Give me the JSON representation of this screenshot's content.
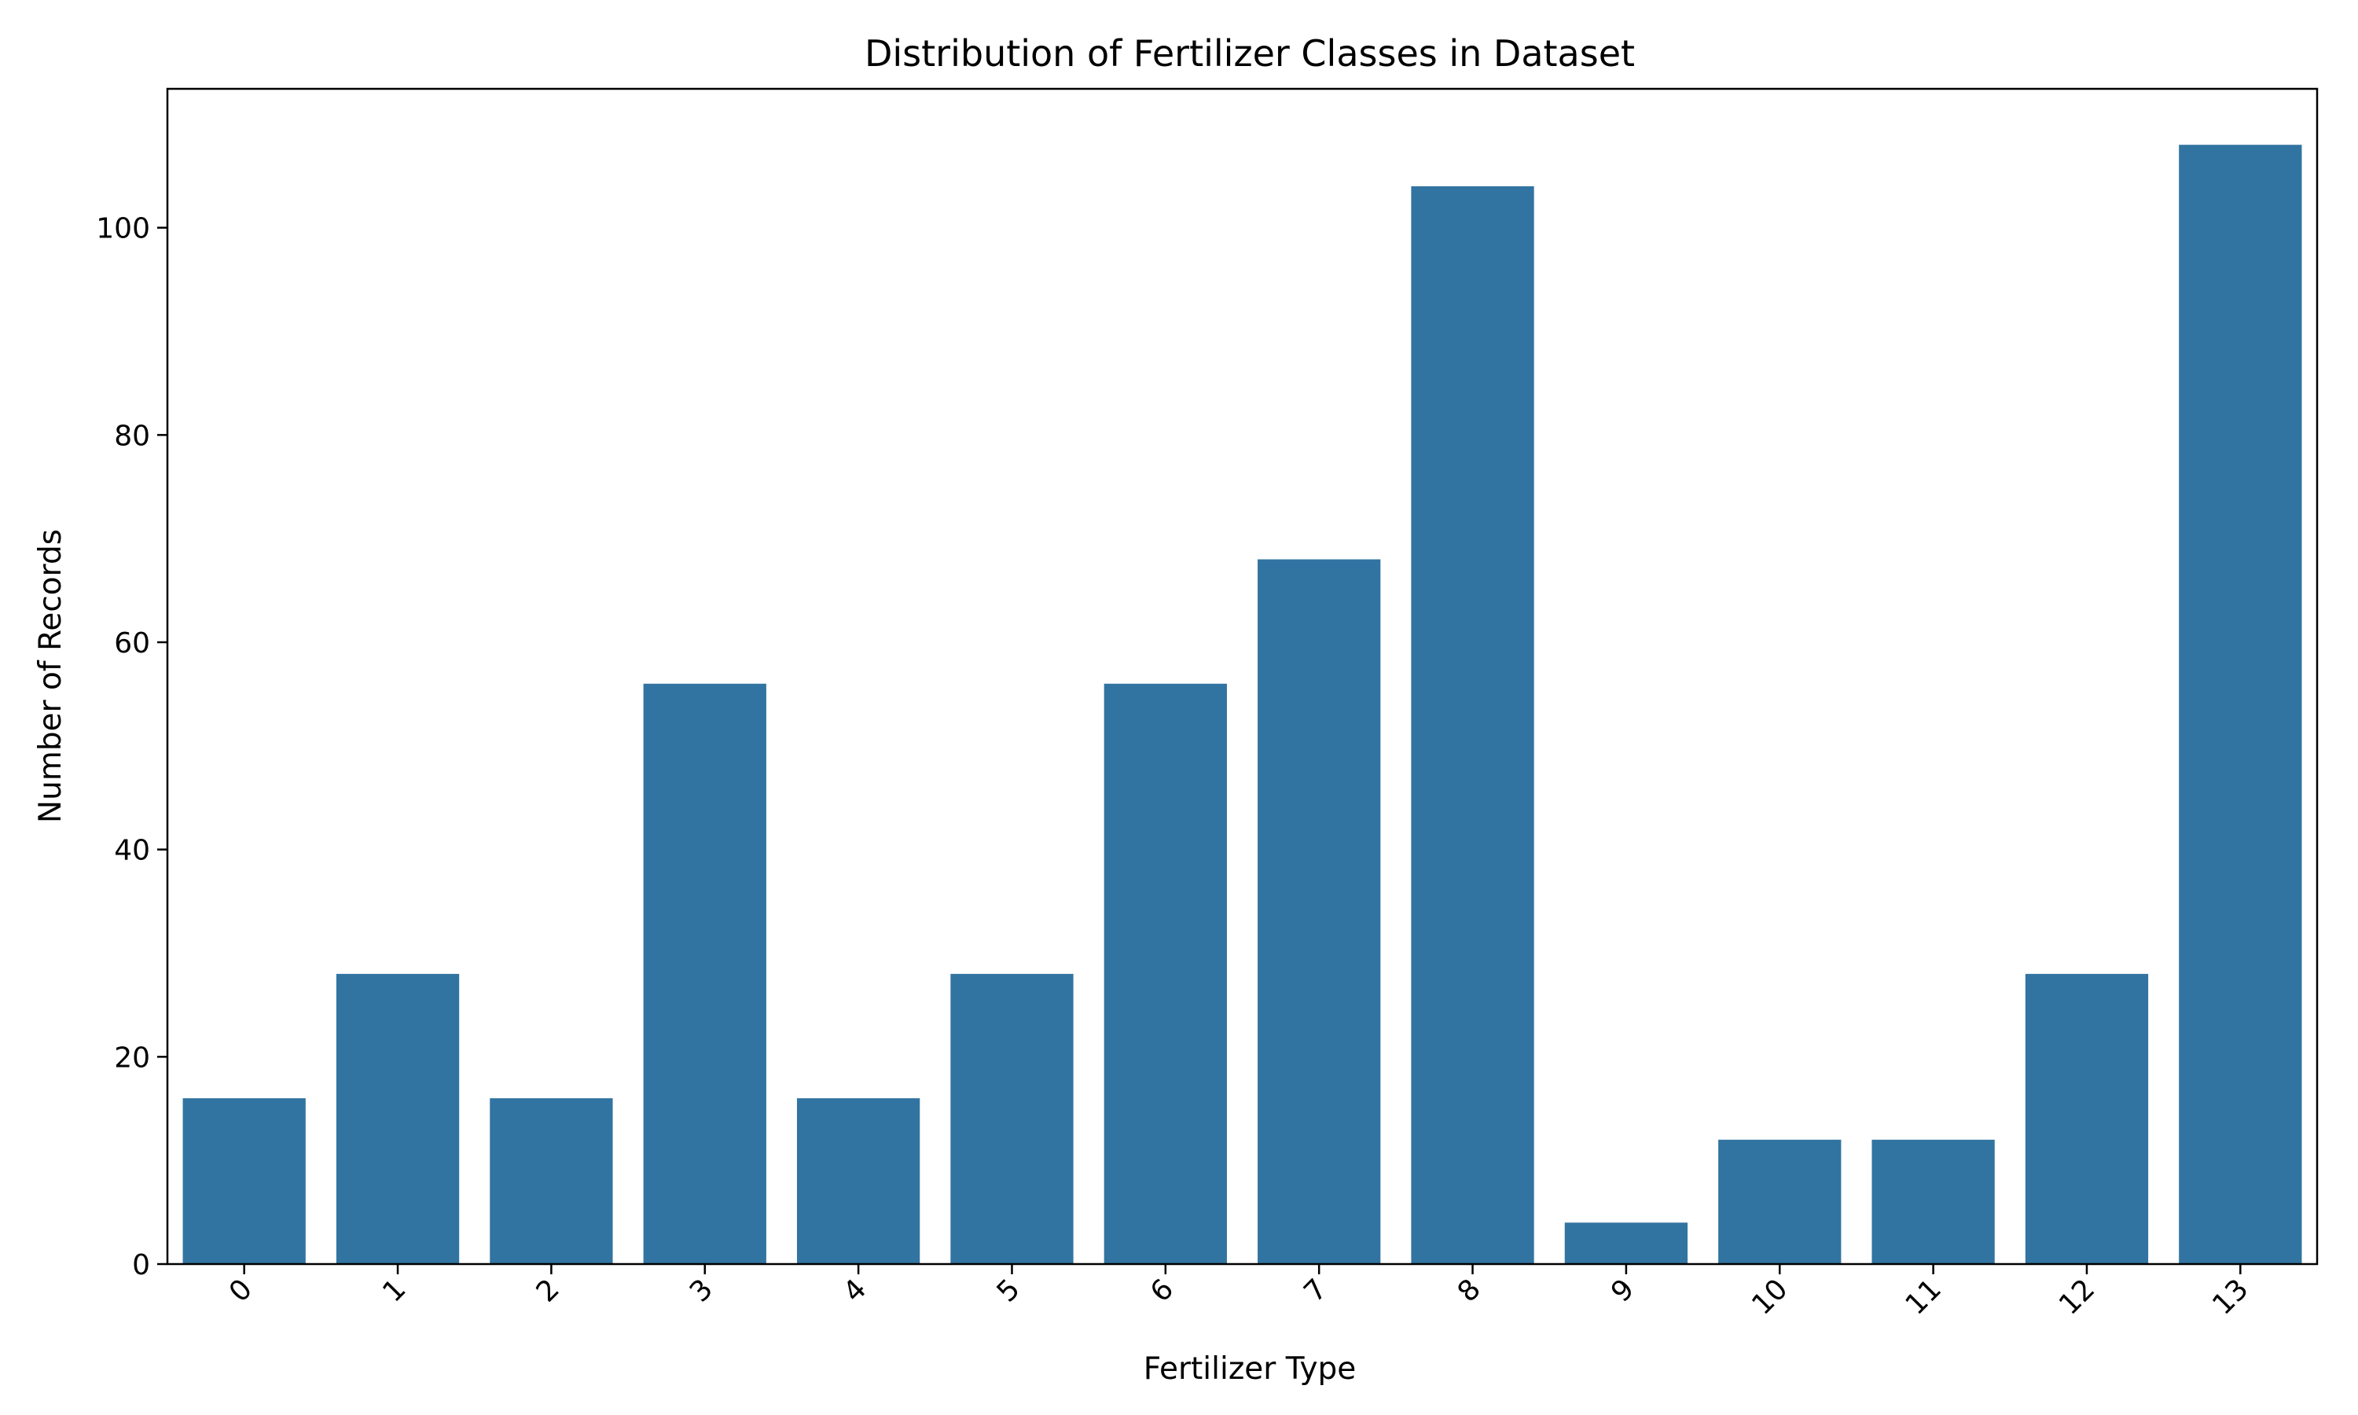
{
  "chart_data": {
    "type": "bar",
    "title": "Distribution of Fertilizer Classes in Dataset",
    "xlabel": "Fertilizer Type",
    "ylabel": "Number of Records",
    "categories": [
      "0",
      "1",
      "2",
      "3",
      "4",
      "5",
      "6",
      "7",
      "8",
      "9",
      "10",
      "11",
      "12",
      "13"
    ],
    "values": [
      16,
      28,
      16,
      56,
      16,
      28,
      56,
      68,
      104,
      4,
      12,
      12,
      28,
      108
    ],
    "ylim": [
      0,
      113.4
    ],
    "yticks": [
      0,
      20,
      40,
      60,
      80,
      100
    ],
    "xtick_rotation": "45 degrees",
    "grid": false,
    "legend": "none",
    "bar_color": "#3274a1",
    "axis_color": "#000000"
  }
}
